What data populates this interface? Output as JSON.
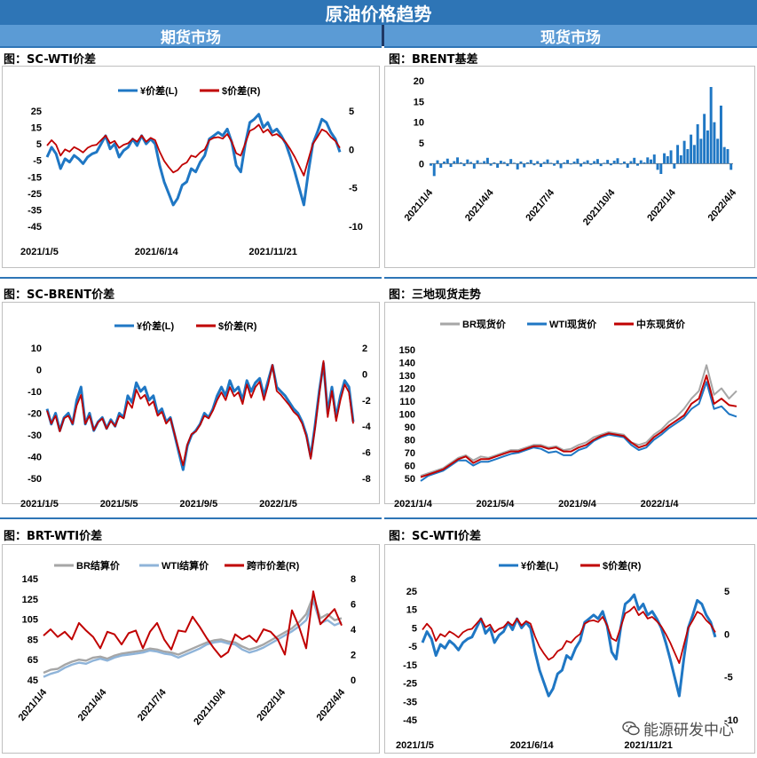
{
  "page_title": "原油价格趋势",
  "sections": {
    "futures": "期货市场",
    "spot": "现货市场"
  },
  "watermark": {
    "text": "能源研发中心",
    "icon": "wechat-icon"
  },
  "colors": {
    "blue": "#1f77c4",
    "red": "#c00000",
    "gray": "#a6a6a6",
    "lightblue": "#8fb4d9",
    "header": "#2e75b6",
    "subheader": "#5b9bd5"
  },
  "chart_data": [
    {
      "id": "sc_wti_1",
      "title": "图：SC-WTI价差",
      "type": "line",
      "x_ticks": [
        "2021/1/5",
        "2021/6/14",
        "2021/11/21"
      ],
      "y_left": {
        "ticks": [
          25,
          15,
          5,
          -5,
          -15,
          -25,
          -35,
          -45
        ],
        "range": [
          -45,
          25
        ]
      },
      "y_right": {
        "ticks": [
          5,
          0,
          -5,
          -10
        ],
        "range": [
          -10,
          5
        ]
      },
      "series": [
        {
          "name": "¥价差(L)",
          "axis": "left",
          "color": "#1f77c4",
          "values": [
            -3,
            3,
            -1,
            -10,
            -4,
            -6,
            -2,
            -4,
            -7,
            -3,
            -1,
            0,
            5,
            10,
            2,
            5,
            -3,
            1,
            3,
            8,
            4,
            10,
            5,
            8,
            5,
            -8,
            -18,
            -25,
            -32,
            -28,
            -20,
            -18,
            -10,
            -12,
            -6,
            -2,
            8,
            10,
            12,
            10,
            14,
            6,
            -8,
            -12,
            5,
            18,
            20,
            23,
            15,
            18,
            12,
            14,
            10,
            5,
            -3,
            -12,
            -22,
            -32,
            -12,
            5,
            12,
            20,
            18,
            12,
            8,
            0
          ]
        },
        {
          "name": "$价差(R)",
          "axis": "right",
          "color": "#c00000",
          "values": [
            0.5,
            1.2,
            0.6,
            -0.8,
            0,
            -0.3,
            0.3,
            0,
            -0.4,
            0.2,
            0.5,
            0.6,
            1.2,
            1.8,
            0.8,
            1.1,
            0.2,
            0.6,
            0.8,
            1.4,
            1,
            1.8,
            1,
            1.5,
            1.2,
            -0.3,
            -1.5,
            -2.3,
            -3,
            -2.7,
            -2,
            -1.7,
            -0.8,
            -1,
            -0.4,
            0,
            1.2,
            1.5,
            1.6,
            1.4,
            2,
            1,
            -0.5,
            -0.8,
            0.8,
            2.4,
            2.7,
            3.2,
            2.2,
            2.6,
            1.8,
            2,
            1.5,
            0.9,
            0,
            -1,
            -2.2,
            -3.4,
            -1.3,
            0.7,
            1.6,
            2.6,
            2.3,
            1.6,
            1.1,
            0.2
          ]
        }
      ],
      "legend": "top"
    },
    {
      "id": "brent_basis",
      "title": "图：BRENT基差",
      "type": "bar",
      "x_ticks": [
        "2021/1/4",
        "2021/4/4",
        "2021/7/4",
        "2021/10/4",
        "2022/1/4",
        "2022/4/4"
      ],
      "y": {
        "ticks": [
          20,
          15,
          10,
          5,
          0
        ],
        "range": [
          -4,
          20
        ]
      },
      "series": [
        {
          "name": "BRENT基差",
          "color": "#1f77c4",
          "values": [
            -0.5,
            -3,
            0.8,
            -1,
            0.5,
            1.2,
            -0.8,
            0.6,
            1.5,
            0.3,
            -0.6,
            1,
            0.4,
            -1.2,
            0.8,
            0.2,
            0.6,
            1.4,
            -0.5,
            0.3,
            -1,
            0.7,
            0.4,
            -0.6,
            1.1,
            0.2,
            -1.4,
            0.5,
            -0.9,
            0.3,
            0.9,
            -0.4,
            0.6,
            -0.8,
            0.4,
            1,
            0.2,
            -0.5,
            0.8,
            -1.1,
            0.3,
            0.9,
            -0.2,
            0.5,
            1.2,
            -0.7,
            0.4,
            0.8,
            -0.3,
            0.6,
            1.1,
            -0.6,
            0.2,
            0.9,
            -0.4,
            0.7,
            1.3,
            -0.2,
            0.5,
            -1,
            0.6,
            1.4,
            -0.5,
            0.8,
            0.3,
            1.5,
            1,
            2.2,
            -1.5,
            -2.5,
            2.5,
            1.8,
            3.2,
            -1.2,
            4.5,
            2,
            5.5,
            3.5,
            7,
            4.5,
            9.5,
            6,
            12,
            8,
            18.5,
            10,
            6,
            14,
            4,
            3.5,
            -1.5
          ]
        }
      ],
      "legend": "none"
    },
    {
      "id": "sc_brent",
      "title": "图：SC-BRENT价差",
      "type": "line",
      "x_ticks": [
        "2021/1/5",
        "2021/5/5",
        "2021/9/5",
        "2022/1/5"
      ],
      "y_left": {
        "ticks": [
          10,
          0,
          -10,
          -20,
          -30,
          -40,
          -50
        ],
        "range": [
          -50,
          10
        ]
      },
      "y_right": {
        "ticks": [
          2,
          0,
          -2,
          -4,
          -6,
          -8
        ],
        "range": [
          -8,
          2
        ]
      },
      "series": [
        {
          "name": "¥价差(L)",
          "axis": "left",
          "color": "#1f77c4",
          "values": [
            -18,
            -25,
            -20,
            -28,
            -22,
            -20,
            -25,
            -14,
            -8,
            -25,
            -20,
            -28,
            -24,
            -22,
            -27,
            -23,
            -26,
            -20,
            -22,
            -12,
            -15,
            -6,
            -10,
            -8,
            -14,
            -12,
            -20,
            -18,
            -24,
            -22,
            -30,
            -38,
            -46,
            -35,
            -30,
            -28,
            -25,
            -20,
            -22,
            -18,
            -12,
            -8,
            -12,
            -5,
            -10,
            -8,
            -14,
            -5,
            -10,
            -6,
            -4,
            -12,
            -5,
            2,
            -8,
            -10,
            -12,
            -15,
            -18,
            -20,
            -24,
            -30,
            -40,
            -26,
            -10,
            3,
            -20,
            -8,
            -22,
            -12,
            -5,
            -8,
            -24
          ]
        },
        {
          "name": "$价差(R)",
          "axis": "right",
          "color": "#c00000",
          "values": [
            -2.8,
            -3.8,
            -3.2,
            -4.4,
            -3.4,
            -3.2,
            -3.8,
            -2.4,
            -1.6,
            -3.8,
            -3.2,
            -4.3,
            -3.7,
            -3.4,
            -4.2,
            -3.6,
            -4,
            -3.2,
            -3.4,
            -2.1,
            -2.6,
            -1.2,
            -1.9,
            -1.6,
            -2.4,
            -2.1,
            -3.2,
            -2.9,
            -3.8,
            -3.4,
            -4.6,
            -5.8,
            -7,
            -5.4,
            -4.6,
            -4.4,
            -3.9,
            -3.2,
            -3.4,
            -2.8,
            -2,
            -1.4,
            -2,
            -1,
            -1.7,
            -1.4,
            -2.3,
            -0.8,
            -1.8,
            -1,
            -0.6,
            -2,
            -0.8,
            0.7,
            -1.3,
            -1.6,
            -2,
            -2.4,
            -2.9,
            -3.2,
            -3.8,
            -4.8,
            -6.5,
            -4.2,
            -1.6,
            1,
            -3.3,
            -1.3,
            -3.6,
            -2,
            -0.8,
            -1.4,
            -3.8
          ]
        }
      ],
      "legend": "top"
    },
    {
      "id": "three_spot",
      "title": "图：三地现货走势",
      "type": "line",
      "x_ticks": [
        "2021/1/4",
        "2021/5/4",
        "2021/9/4",
        "2022/1/4"
      ],
      "y": {
        "ticks": [
          150,
          140,
          130,
          120,
          110,
          100,
          90,
          80,
          70,
          60,
          50
        ],
        "range": [
          50,
          150
        ]
      },
      "series": [
        {
          "name": "BR现货价",
          "color": "#a6a6a6",
          "values": [
            52,
            54,
            56,
            58,
            62,
            66,
            68,
            64,
            67,
            66,
            68,
            70,
            72,
            72,
            74,
            76,
            76,
            74,
            75,
            72,
            73,
            76,
            78,
            82,
            84,
            86,
            85,
            84,
            78,
            76,
            78,
            84,
            88,
            94,
            98,
            104,
            112,
            118,
            138,
            115,
            120,
            112,
            118
          ]
        },
        {
          "name": "WTI现货价",
          "color": "#1f77c4",
          "values": [
            48,
            52,
            54,
            56,
            60,
            64,
            64,
            60,
            63,
            63,
            65,
            67,
            69,
            70,
            72,
            74,
            73,
            70,
            71,
            68,
            68,
            72,
            74,
            79,
            82,
            84,
            83,
            82,
            76,
            72,
            74,
            80,
            84,
            89,
            93,
            97,
            104,
            108,
            125,
            104,
            106,
            100,
            98
          ]
        },
        {
          "name": "中东现货价",
          "color": "#c00000",
          "values": [
            51,
            53,
            55,
            57,
            61,
            65,
            67,
            62,
            65,
            65,
            67,
            69,
            71,
            71,
            73,
            75,
            75,
            73,
            74,
            71,
            71,
            74,
            76,
            80,
            83,
            85,
            84,
            83,
            78,
            74,
            76,
            82,
            86,
            91,
            95,
            99,
            108,
            112,
            130,
            108,
            112,
            107,
            106
          ]
        }
      ],
      "legend": "top"
    },
    {
      "id": "brt_wti",
      "title": "图：BRT-WTI价差",
      "type": "line",
      "x_ticks": [
        "2021/1/4",
        "2021/4/4",
        "2021/7/4",
        "2021/10/4",
        "2022/1/4",
        "2022/4/4"
      ],
      "y_left": {
        "ticks": [
          145,
          125,
          105,
          85,
          65,
          45
        ],
        "range": [
          45,
          145
        ]
      },
      "y_right": {
        "ticks": [
          8,
          6,
          4,
          2,
          0
        ],
        "range": [
          0,
          8
        ]
      },
      "series": [
        {
          "name": "BR结算价",
          "axis": "left",
          "color": "#a6a6a6",
          "values": [
            52,
            55,
            56,
            60,
            63,
            65,
            64,
            67,
            68,
            66,
            69,
            71,
            72,
            73,
            74,
            76,
            75,
            73,
            72,
            70,
            73,
            76,
            79,
            82,
            84,
            85,
            83,
            82,
            78,
            75,
            77,
            80,
            84,
            88,
            92,
            96,
            102,
            110,
            128,
            106,
            110,
            104,
            106
          ]
        },
        {
          "name": "WTI结算价",
          "axis": "left",
          "color": "#8fb4d9",
          "values": [
            48,
            51,
            53,
            57,
            60,
            62,
            61,
            64,
            66,
            64,
            67,
            69,
            70,
            71,
            72,
            74,
            73,
            71,
            70,
            67,
            70,
            73,
            76,
            80,
            82,
            83,
            81,
            80,
            75,
            72,
            74,
            77,
            81,
            85,
            89,
            93,
            98,
            104,
            123,
            101,
            104,
            99,
            102
          ]
        },
        {
          "name": "跨市价差(R)",
          "axis": "right",
          "color": "#c00000",
          "values": [
            3.5,
            4,
            3.4,
            3.8,
            3.2,
            4.5,
            3.9,
            3.4,
            2.5,
            3.8,
            3.6,
            2.8,
            3.7,
            3.9,
            2.5,
            3.8,
            4.5,
            3.2,
            2.4,
            3.9,
            3.8,
            5,
            4.2,
            3.3,
            2.5,
            1.8,
            2.2,
            3.6,
            3.2,
            3.5,
            3,
            4,
            3.8,
            3.2,
            2,
            5.5,
            4.2,
            2.5,
            7,
            4.4,
            5,
            5.6,
            4.3
          ]
        }
      ],
      "legend": "top"
    },
    {
      "id": "sc_wti_2",
      "title": "图：SC-WTI价差",
      "type": "line",
      "x_ticks": [
        "2021/1/5",
        "2021/6/14",
        "2021/11/21"
      ],
      "y_left": {
        "ticks": [
          25,
          15,
          5,
          -5,
          -15,
          -25,
          -35,
          -45
        ],
        "range": [
          -45,
          25
        ]
      },
      "y_right": {
        "ticks": [
          5,
          0,
          -5,
          -10
        ],
        "range": [
          -10,
          5
        ]
      },
      "series": [
        {
          "name": "¥价差(L)",
          "axis": "left",
          "color": "#1f77c4",
          "values": [
            -3,
            3,
            -1,
            -10,
            -4,
            -6,
            -2,
            -4,
            -7,
            -3,
            -1,
            0,
            5,
            10,
            2,
            5,
            -3,
            1,
            3,
            8,
            4,
            10,
            5,
            8,
            5,
            -8,
            -18,
            -25,
            -32,
            -28,
            -20,
            -18,
            -10,
            -12,
            -6,
            -2,
            8,
            10,
            12,
            10,
            14,
            6,
            -8,
            -12,
            5,
            18,
            20,
            23,
            15,
            18,
            12,
            14,
            10,
            5,
            -3,
            -12,
            -22,
            -32,
            -12,
            5,
            12,
            20,
            18,
            12,
            8,
            0
          ]
        },
        {
          "name": "$价差(R)",
          "axis": "right",
          "color": "#c00000",
          "values": [
            0.5,
            1.2,
            0.6,
            -0.8,
            0,
            -0.3,
            0.3,
            0,
            -0.4,
            0.2,
            0.5,
            0.6,
            1.2,
            1.8,
            0.8,
            1.1,
            0.2,
            0.6,
            0.8,
            1.4,
            1,
            1.8,
            1,
            1.5,
            1.2,
            -0.3,
            -1.5,
            -2.3,
            -3,
            -2.7,
            -2,
            -1.7,
            -0.8,
            -1,
            -0.4,
            0,
            1.2,
            1.5,
            1.6,
            1.4,
            2,
            1,
            -0.5,
            -0.8,
            0.8,
            2.4,
            2.7,
            3.2,
            2.2,
            2.6,
            1.8,
            2,
            1.5,
            0.9,
            0,
            -1,
            -2.2,
            -3.4,
            -1.3,
            0.7,
            1.6,
            2.6,
            2.3,
            1.6,
            1.1,
            0.2
          ]
        }
      ],
      "legend": "top"
    }
  ]
}
